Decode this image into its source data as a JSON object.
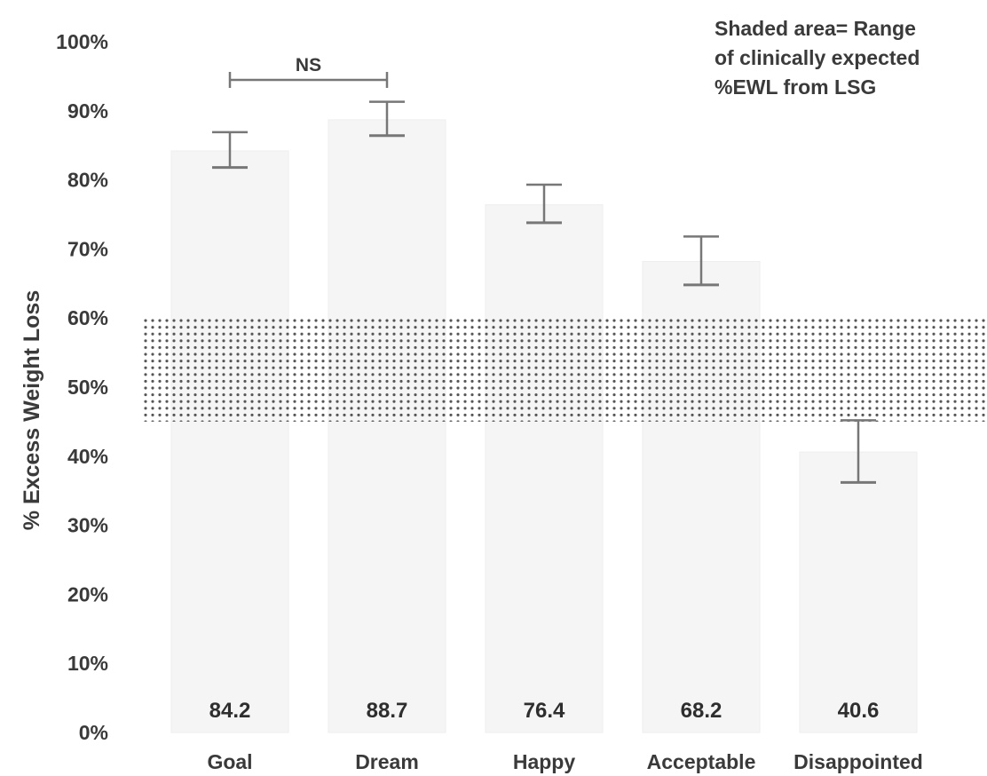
{
  "chart_data": {
    "type": "bar",
    "ylabel": "% Excess Weight Loss",
    "xlabel": "",
    "title": "",
    "ylim": [
      0,
      100
    ],
    "yticks": [
      0,
      10,
      20,
      30,
      40,
      50,
      60,
      70,
      80,
      90,
      100
    ],
    "ytick_suffix": "%",
    "categories": [
      "Goal",
      "Dream",
      "Happy",
      "Acceptable",
      "Disappointed"
    ],
    "values": [
      84.2,
      88.7,
      76.4,
      68.2,
      40.6
    ],
    "value_labels": [
      "84.2",
      "88.7",
      "76.4",
      "68.2",
      "40.6"
    ],
    "error_bars": [
      {
        "low": 81.8,
        "high": 86.9
      },
      {
        "low": 86.4,
        "high": 91.3
      },
      {
        "low": 73.8,
        "high": 79.3
      },
      {
        "low": 64.8,
        "high": 71.8
      },
      {
        "low": 36.2,
        "high": 45.2
      }
    ],
    "shaded_range": {
      "low": 45,
      "high": 60
    },
    "annotation_lines": [
      "Shaded area= Range",
      "of clinically expected",
      "%EWL from LSG"
    ],
    "significance": {
      "label": "NS",
      "from": "Goal",
      "to": "Dream"
    },
    "grid": false,
    "legend": "none",
    "colors": {
      "bar": "#f5f5f5",
      "bar_edge": "#eeeeee",
      "error": "#777777",
      "dots": "#555555",
      "text": "#3a3a3a"
    }
  }
}
